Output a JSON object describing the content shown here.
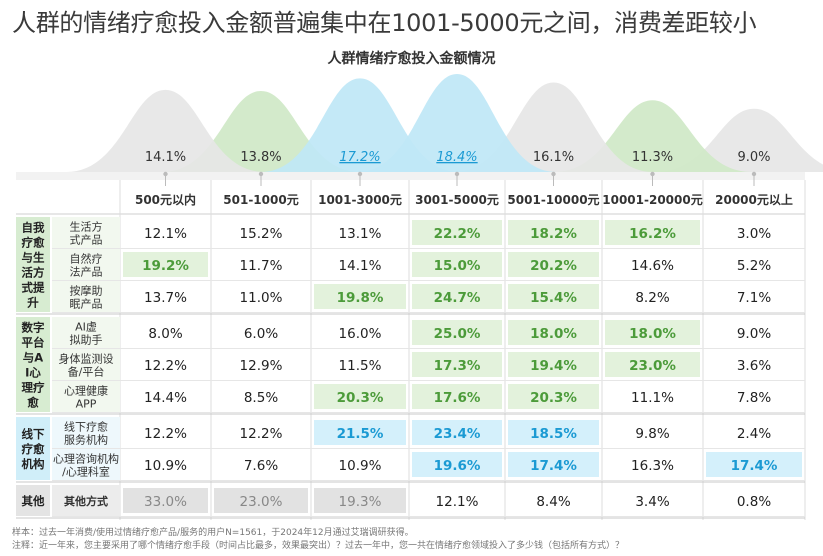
{
  "headline": "人群的情绪疗愈投入金额普遍集中在1001-5000元之间，消费差距较小",
  "chart_data": {
    "type": "table",
    "title": "人群情绪疗愈投入金额情况",
    "columns": [
      "500元以内",
      "501-1000元",
      "1001-3000元",
      "3001-5000元",
      "5001-10000元",
      "10001-20000元",
      "20000元以上"
    ],
    "overall": [
      "14.1%",
      "13.8%",
      "17.2%",
      "18.4%",
      "16.1%",
      "11.3%",
      "9.0%"
    ],
    "overall_values": [
      14.1,
      13.8,
      17.2,
      18.4,
      16.1,
      11.3,
      9.0
    ],
    "overall_highlight": [
      false,
      false,
      true,
      true,
      false,
      false,
      false
    ],
    "groups": [
      {
        "name": "自我疗愈与生活方式提升",
        "rows": [
          {
            "label": "生活方式产品",
            "values": [
              "12.1%",
              "15.2%",
              "13.1%",
              "22.2%",
              "18.2%",
              "16.2%",
              "3.0%"
            ],
            "highlight": [
              "",
              "",
              "",
              "green",
              "green",
              "green",
              ""
            ]
          },
          {
            "label": "自然疗法产品",
            "values": [
              "19.2%",
              "11.7%",
              "14.1%",
              "15.0%",
              "20.2%",
              "14.6%",
              "5.2%"
            ],
            "highlight": [
              "green",
              "",
              "",
              "green",
              "green",
              "",
              ""
            ]
          },
          {
            "label": "按摩助眠产品",
            "values": [
              "13.7%",
              "11.0%",
              "19.8%",
              "24.7%",
              "15.4%",
              "8.2%",
              "7.1%"
            ],
            "highlight": [
              "",
              "",
              "green",
              "green",
              "green",
              "",
              ""
            ]
          }
        ]
      },
      {
        "name": "数字平台与AI心理疗愈",
        "rows": [
          {
            "label": "AI虚拟助手",
            "values": [
              "8.0%",
              "6.0%",
              "16.0%",
              "25.0%",
              "18.0%",
              "18.0%",
              "9.0%"
            ],
            "highlight": [
              "",
              "",
              "",
              "green",
              "green",
              "green",
              ""
            ]
          },
          {
            "label": "身体监测设备/平台",
            "values": [
              "12.2%",
              "12.9%",
              "11.5%",
              "17.3%",
              "19.4%",
              "23.0%",
              "3.6%"
            ],
            "highlight": [
              "",
              "",
              "",
              "green",
              "green",
              "green",
              ""
            ]
          },
          {
            "label": "心理健康APP",
            "values": [
              "14.4%",
              "8.5%",
              "20.3%",
              "17.6%",
              "20.3%",
              "11.1%",
              "7.8%"
            ],
            "highlight": [
              "",
              "",
              "green",
              "green",
              "green",
              "",
              ""
            ]
          }
        ]
      },
      {
        "name": "线下疗愈机构",
        "rows": [
          {
            "label": "线下疗愈服务机构",
            "values": [
              "12.2%",
              "12.2%",
              "21.5%",
              "23.4%",
              "18.5%",
              "9.8%",
              "2.4%"
            ],
            "highlight": [
              "",
              "",
              "blue",
              "blue",
              "blue",
              "",
              ""
            ]
          },
          {
            "label": "心理咨询机构/心理科室",
            "values": [
              "10.9%",
              "7.6%",
              "10.9%",
              "19.6%",
              "17.4%",
              "16.3%",
              "17.4%"
            ],
            "highlight": [
              "",
              "",
              "",
              "blue",
              "blue",
              "",
              "blue"
            ]
          }
        ]
      },
      {
        "name": "其他",
        "rows": [
          {
            "label": "其他方式",
            "values": [
              "33.0%",
              "23.0%",
              "19.3%",
              "12.1%",
              "8.4%",
              "3.4%",
              "0.8%"
            ],
            "highlight": [
              "gray",
              "gray",
              "gray",
              "",
              "",
              "",
              ""
            ]
          }
        ]
      }
    ]
  },
  "footnotes": {
    "line1": "样本：过去一年消费/使用过情绪疗愈产品/服务的用户N=1561，于2024年12月通过艾瑞调研获得。",
    "line2": "注释：近一年来，您主要采用了哪个情绪疗愈手段（时间占比最多，效果最突出）？过去一年中，您一共在情绪疗愈领域投入了多少钱（包括所有方式）？"
  },
  "colors": {
    "green": "#7dc26a",
    "green_fill": "#e3f2dc",
    "blue": "#3fb7e6",
    "blue_fill": "#d4f0fb",
    "gray_fill": "#e2e2e2",
    "gray_text": "#888888",
    "group_green": "#d7ecd1",
    "group_blue": "#d0eef9",
    "group_gray": "#e4e4e4",
    "bell_gray": "#e6e6e6",
    "bell_green": "#cfe8c7",
    "bell_blue": "#bfe7f6"
  },
  "icons": [
    "tick-connector-icon"
  ]
}
